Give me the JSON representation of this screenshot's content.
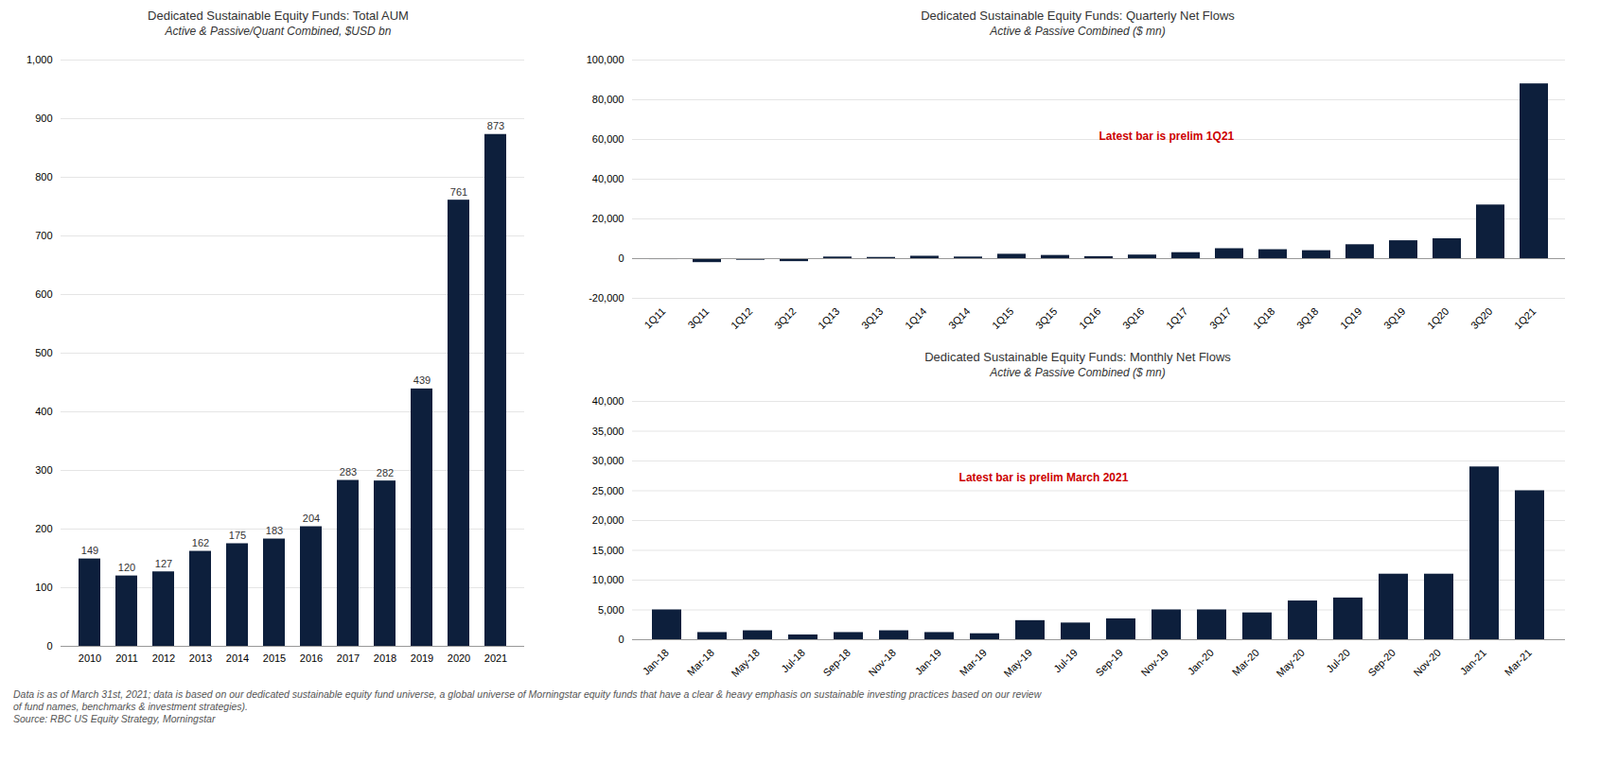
{
  "chart_data": [
    {
      "type": "bar",
      "title": "Dedicated Sustainable Equity Funds: Total AUM",
      "subtitle": "Active & Passive/Quant Combined, $USD bn",
      "categories": [
        "2010",
        "2011",
        "2012",
        "2013",
        "2014",
        "2015",
        "2016",
        "2017",
        "2018",
        "2019",
        "2020",
        "2021"
      ],
      "values": [
        149,
        120,
        127,
        162,
        175,
        183,
        204,
        283,
        282,
        439,
        761,
        873
      ],
      "color": "#0d1f3c",
      "ylim": [
        0,
        1000
      ],
      "yticks": [
        0,
        100,
        200,
        300,
        400,
        500,
        600,
        700,
        800,
        900,
        {
          "value": 1000,
          "label": "1,000"
        }
      ],
      "grid": true,
      "data_labels": true
    },
    {
      "type": "bar",
      "title": "Dedicated Sustainable Equity Funds: Quarterly Net Flows",
      "subtitle": "Active & Passive Combined ($ mn)",
      "annotations": [
        {
          "text": "Latest bar is prelim 1Q21",
          "color": "#cc0000"
        }
      ],
      "categories": [
        "1Q11",
        "3Q11",
        "1Q12",
        "3Q12",
        "1Q13",
        "3Q13",
        "1Q14",
        "3Q14",
        "1Q15",
        "3Q15",
        "1Q16",
        "3Q16",
        "1Q17",
        "3Q17",
        "1Q18",
        "3Q18",
        "1Q19",
        "3Q19",
        "1Q20",
        "3Q20",
        "1Q21"
      ],
      "values": [
        -500,
        -2000,
        -800,
        -1500,
        800,
        600,
        1200,
        800,
        2200,
        1600,
        1000,
        1800,
        3000,
        5000,
        4500,
        4000,
        7000,
        9000,
        10000,
        27000,
        88000
      ],
      "color": "#0d1f3c",
      "ylim": [
        -20000,
        100000
      ],
      "yticks": [
        {
          "value": -20000,
          "label": "-20,000"
        },
        0,
        {
          "value": 20000,
          "label": "20,000"
        },
        {
          "value": 40000,
          "label": "40,000"
        },
        {
          "value": 60000,
          "label": "60,000"
        },
        {
          "value": 80000,
          "label": "80,000"
        },
        {
          "value": 100000,
          "label": "100,000"
        }
      ],
      "grid": true
    },
    {
      "type": "bar",
      "title": "Dedicated Sustainable Equity Funds: Monthly Net Flows",
      "subtitle": "Active & Passive Combined ($ mn)",
      "annotations": [
        {
          "text": "Latest bar is prelim March 2021",
          "color": "#cc0000"
        }
      ],
      "categories": [
        "Jan-18",
        "Mar-18",
        "May-18",
        "Jul-18",
        "Sep-18",
        "Nov-18",
        "Jan-19",
        "Mar-19",
        "May-19",
        "Jul-19",
        "Sep-19",
        "Nov-19",
        "Jan-20",
        "Mar-20",
        "May-20",
        "Jul-20",
        "Sep-20",
        "Nov-20",
        "Jan-21",
        "Mar-21"
      ],
      "values": [
        5000,
        1200,
        1500,
        800,
        1200,
        1500,
        1200,
        1000,
        3200,
        2800,
        3500,
        5000,
        5000,
        4500,
        6500,
        7000,
        11000,
        11000,
        29000,
        25000
      ],
      "color": "#0d1f3c",
      "ylim": [
        0,
        40000
      ],
      "yticks": [
        0,
        {
          "value": 5000,
          "label": "5,000"
        },
        {
          "value": 10000,
          "label": "10,000"
        },
        {
          "value": 15000,
          "label": "15,000"
        },
        {
          "value": 20000,
          "label": "20,000"
        },
        {
          "value": 25000,
          "label": "25,000"
        },
        {
          "value": 30000,
          "label": "30,000"
        },
        {
          "value": 35000,
          "label": "35,000"
        },
        {
          "value": 40000,
          "label": "40,000"
        }
      ],
      "grid": true
    }
  ],
  "footnote": [
    "Data is as of March 31st, 2021; data is based on our dedicated sustainable equity fund universe, a global universe of Morningstar equity funds that have a clear & heavy emphasis on sustainable investing practices based on our review",
    "of fund names, benchmarks & investment strategies).",
    "Source: RBC US Equity Strategy, Morningstar"
  ]
}
